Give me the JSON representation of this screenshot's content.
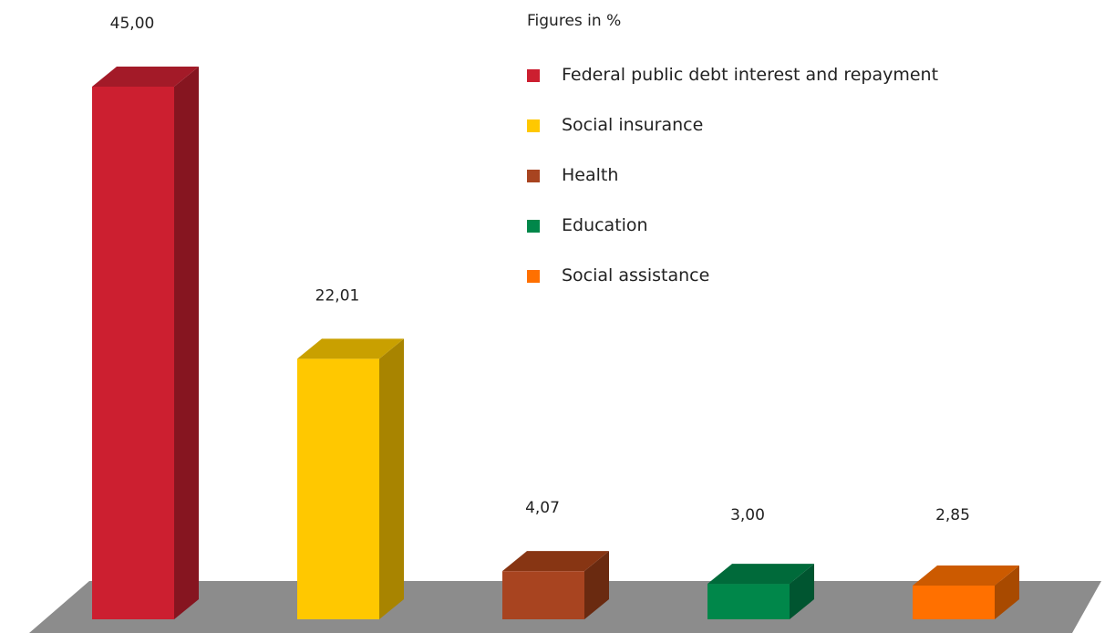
{
  "chart_data": {
    "type": "bar",
    "title": "",
    "xlabel": "",
    "ylabel": "",
    "unit_note": "Figures in %",
    "categories": [
      "Federal public debt interest and repayment",
      "Social insurance",
      "Health",
      "Education",
      "Social assistance"
    ],
    "values": [
      45.0,
      22.01,
      4.07,
      3.0,
      2.85
    ],
    "value_labels": [
      "45,00",
      "22,01",
      "4,07",
      "3,00",
      "2,85"
    ],
    "ylim": [
      0,
      45
    ],
    "grid": false,
    "legend_position": "top-right",
    "style": "3d",
    "colors": {
      "front": [
        "#cc1f30",
        "#ffc800",
        "#a84420",
        "#00874a",
        "#ff7000"
      ],
      "side": [
        "#861520",
        "#a88400",
        "#6a2a10",
        "#005530",
        "#a84a00"
      ],
      "top": [
        "#a31a28",
        "#c9a000",
        "#873513",
        "#006a3a",
        "#cc5a00"
      ],
      "floor": "#8c8c8c"
    }
  }
}
